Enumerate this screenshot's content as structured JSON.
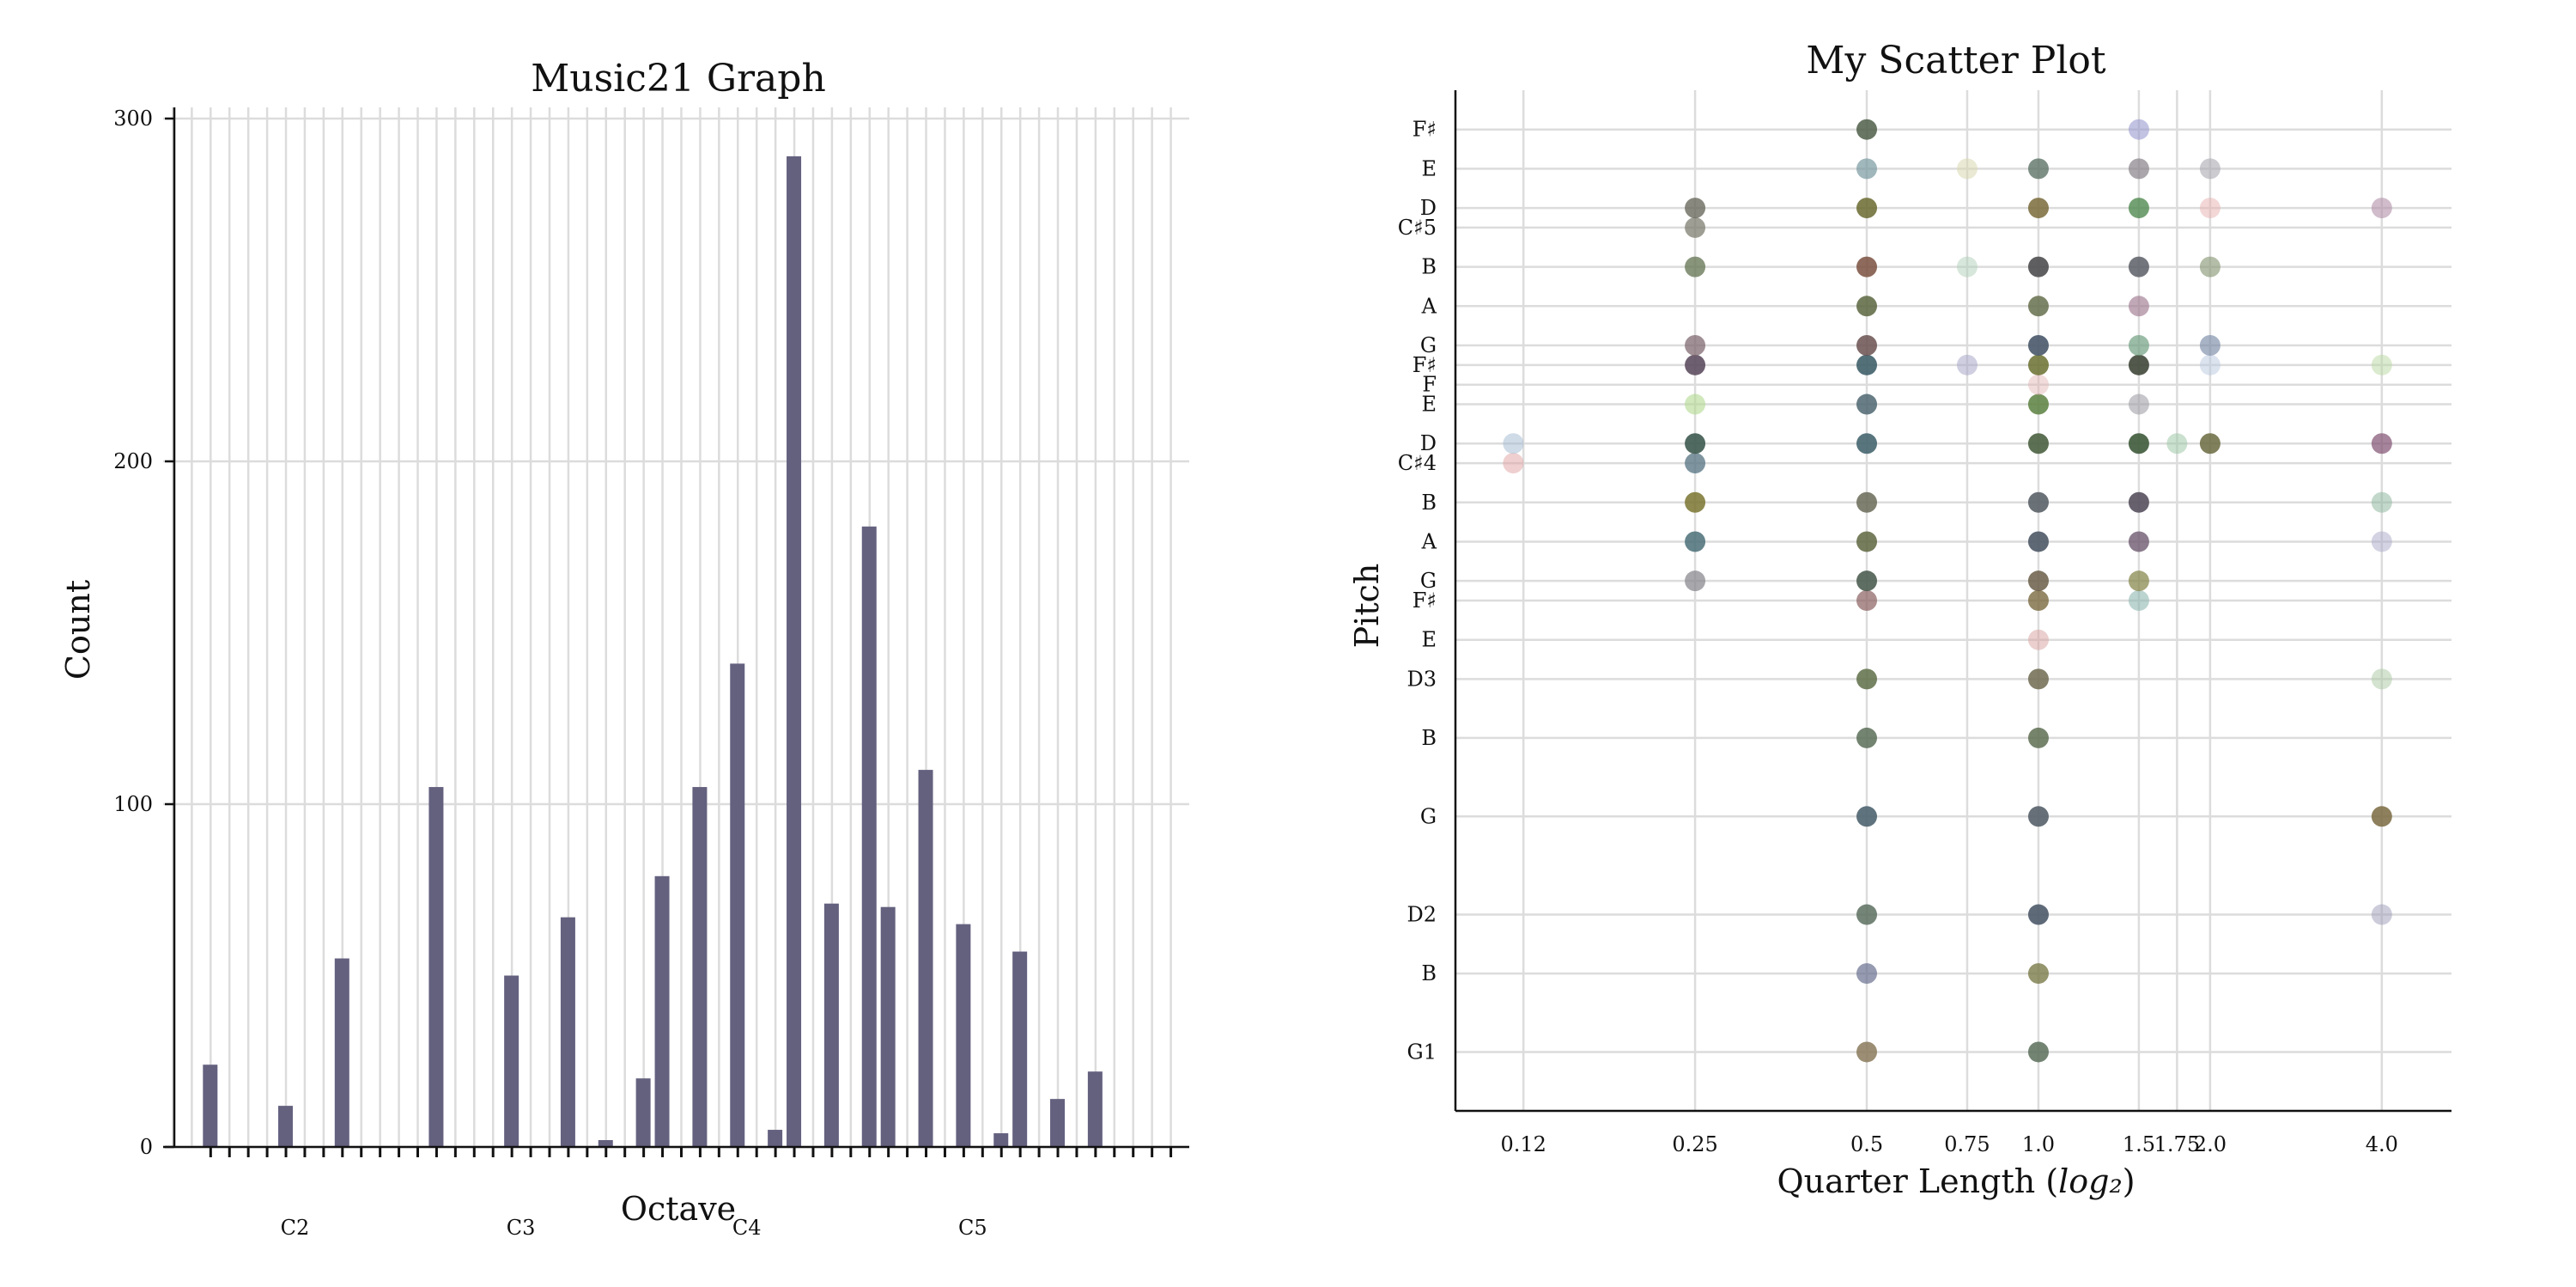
{
  "chart_data": [
    {
      "type": "bar",
      "title": "Music21 Graph",
      "xlabel": "Octave",
      "ylabel": "Count",
      "ylim": [
        0,
        300
      ],
      "yticks": [
        0,
        100,
        200,
        300
      ],
      "grid": true,
      "octave_ticks": [
        {
          "label": "C2",
          "midi": 36
        },
        {
          "label": "C3",
          "midi": 48
        },
        {
          "label": "C4",
          "midi": 60
        },
        {
          "label": "C5",
          "midi": 72
        }
      ],
      "xrange_midi": [
        28.5,
        83
      ],
      "minor_ticks_midi": [
        31,
        32,
        33,
        34,
        35,
        36,
        37,
        38,
        39,
        40,
        41,
        42,
        43,
        44,
        45,
        46,
        47,
        48,
        49,
        50,
        51,
        52,
        53,
        54,
        55,
        56,
        57,
        58,
        59,
        60,
        61,
        62,
        63,
        64,
        65,
        66,
        67,
        68,
        69,
        70,
        71,
        72,
        73,
        74,
        75,
        76,
        77,
        78,
        79,
        80,
        81,
        82
      ],
      "values": [
        {
          "midi": 31,
          "count": 24
        },
        {
          "midi": 35,
          "count": 12
        },
        {
          "midi": 38,
          "count": 55
        },
        {
          "midi": 43,
          "count": 105
        },
        {
          "midi": 47,
          "count": 50
        },
        {
          "midi": 50,
          "count": 67
        },
        {
          "midi": 52,
          "count": 2
        },
        {
          "midi": 54,
          "count": 20
        },
        {
          "midi": 55,
          "count": 79
        },
        {
          "midi": 57,
          "count": 105
        },
        {
          "midi": 59,
          "count": 141
        },
        {
          "midi": 61,
          "count": 5
        },
        {
          "midi": 62,
          "count": 289
        },
        {
          "midi": 64,
          "count": 71
        },
        {
          "midi": 66,
          "count": 181
        },
        {
          "midi": 67,
          "count": 70
        },
        {
          "midi": 69,
          "count": 110
        },
        {
          "midi": 71,
          "count": 65
        },
        {
          "midi": 73,
          "count": 4
        },
        {
          "midi": 74,
          "count": 57
        },
        {
          "midi": 76,
          "count": 14
        },
        {
          "midi": 78,
          "count": 22
        }
      ],
      "bar_color": "#64617f"
    },
    {
      "type": "scatter",
      "title": "My Scatter Plot",
      "xlabel": "Quarter Length (log₂)",
      "ylabel": "Pitch",
      "xscale": "log2",
      "xticks": [
        {
          "label": "0.12",
          "value": 0.125
        },
        {
          "label": "0.25",
          "value": 0.25
        },
        {
          "label": "0.5",
          "value": 0.5
        },
        {
          "label": "0.75",
          "value": 0.75
        },
        {
          "label": "1.0",
          "value": 1.0
        },
        {
          "label": "1.5",
          "value": 1.5
        },
        {
          "label": "1.75",
          "value": 1.75
        },
        {
          "label": "2.0",
          "value": 2.0
        },
        {
          "label": "4.0",
          "value": 4.0
        }
      ],
      "xrange": [
        0.095,
        5.3
      ],
      "yrange_midi": [
        28,
        80
      ],
      "yticks": [
        {
          "label": "G1",
          "midi": 31
        },
        {
          "label": "B",
          "midi": 35
        },
        {
          "label": "D2",
          "midi": 38
        },
        {
          "label": "G",
          "midi": 43
        },
        {
          "label": "B",
          "midi": 47
        },
        {
          "label": "D3",
          "midi": 50
        },
        {
          "label": "E",
          "midi": 52
        },
        {
          "label": "F♯",
          "midi": 54
        },
        {
          "label": "G",
          "midi": 55
        },
        {
          "label": "A",
          "midi": 57
        },
        {
          "label": "B",
          "midi": 59
        },
        {
          "label": "C♯4",
          "midi": 61
        },
        {
          "label": "D",
          "midi": 62
        },
        {
          "label": "E",
          "midi": 64
        },
        {
          "label": "F",
          "midi": 65
        },
        {
          "label": "F♯",
          "midi": 66
        },
        {
          "label": "G",
          "midi": 67
        },
        {
          "label": "A",
          "midi": 69
        },
        {
          "label": "B",
          "midi": 71
        },
        {
          "label": "C♯5",
          "midi": 73
        },
        {
          "label": "D",
          "midi": 74
        },
        {
          "label": "E",
          "midi": 76
        },
        {
          "label": "F♯",
          "midi": 78
        }
      ],
      "points": [
        {
          "ql": 0.5,
          "midi": 31,
          "color": "#8a7a5c",
          "alpha": 0.85
        },
        {
          "ql": 1.0,
          "midi": 31,
          "color": "#5a6e5a",
          "alpha": 0.85
        },
        {
          "ql": 0.5,
          "midi": 35,
          "color": "#6a7090",
          "alpha": 0.7
        },
        {
          "ql": 1.0,
          "midi": 35,
          "color": "#7a7a4a",
          "alpha": 0.8
        },
        {
          "ql": 0.5,
          "midi": 38,
          "color": "#5c7060",
          "alpha": 0.85
        },
        {
          "ql": 1.0,
          "midi": 38,
          "color": "#4e5a6a",
          "alpha": 0.9
        },
        {
          "ql": 4.0,
          "midi": 38,
          "color": "#9a9ab8",
          "alpha": 0.5
        },
        {
          "ql": 0.5,
          "midi": 43,
          "color": "#4e6470",
          "alpha": 0.9
        },
        {
          "ql": 1.0,
          "midi": 43,
          "color": "#56606a",
          "alpha": 0.9
        },
        {
          "ql": 4.0,
          "midi": 43,
          "color": "#7a6a40",
          "alpha": 0.85
        },
        {
          "ql": 0.5,
          "midi": 47,
          "color": "#5a6e58",
          "alpha": 0.85
        },
        {
          "ql": 1.0,
          "midi": 47,
          "color": "#5e6e52",
          "alpha": 0.85
        },
        {
          "ql": 0.5,
          "midi": 50,
          "color": "#5e6e48",
          "alpha": 0.85
        },
        {
          "ql": 1.0,
          "midi": 50,
          "color": "#6e6a50",
          "alpha": 0.85
        },
        {
          "ql": 4.0,
          "midi": 50,
          "color": "#a8c8a0",
          "alpha": 0.5
        },
        {
          "ql": 1.0,
          "midi": 52,
          "color": "#d8a0a0",
          "alpha": 0.5
        },
        {
          "ql": 0.5,
          "midi": 54,
          "color": "#8a6060",
          "alpha": 0.7
        },
        {
          "ql": 1.0,
          "midi": 54,
          "color": "#7a6a40",
          "alpha": 0.8
        },
        {
          "ql": 1.5,
          "midi": 54,
          "color": "#90b8b0",
          "alpha": 0.6
        },
        {
          "ql": 0.25,
          "midi": 55,
          "color": "#8a8a90",
          "alpha": 0.75
        },
        {
          "ql": 0.5,
          "midi": 55,
          "color": "#4e5e52",
          "alpha": 0.9
        },
        {
          "ql": 1.0,
          "midi": 55,
          "color": "#6a5e48",
          "alpha": 0.85
        },
        {
          "ql": 1.5,
          "midi": 55,
          "color": "#8a8a50",
          "alpha": 0.75
        },
        {
          "ql": 0.25,
          "midi": 57,
          "color": "#4a6e78",
          "alpha": 0.85
        },
        {
          "ql": 0.5,
          "midi": 57,
          "color": "#5e6640",
          "alpha": 0.85
        },
        {
          "ql": 1.0,
          "midi": 57,
          "color": "#4e5866",
          "alpha": 0.9
        },
        {
          "ql": 1.5,
          "midi": 57,
          "color": "#6e5a70",
          "alpha": 0.8
        },
        {
          "ql": 4.0,
          "midi": 57,
          "color": "#a8a8c8",
          "alpha": 0.5
        },
        {
          "ql": 0.25,
          "midi": 59,
          "color": "#7a7430",
          "alpha": 0.85
        },
        {
          "ql": 0.5,
          "midi": 59,
          "color": "#6a6a58",
          "alpha": 0.85
        },
        {
          "ql": 1.0,
          "midi": 59,
          "color": "#5a6268",
          "alpha": 0.9
        },
        {
          "ql": 1.5,
          "midi": 59,
          "color": "#56505e",
          "alpha": 0.9
        },
        {
          "ql": 4.0,
          "midi": 59,
          "color": "#90b8a0",
          "alpha": 0.55
        },
        {
          "ql": 0.12,
          "midi": 61,
          "color": "#e0a0a0",
          "alpha": 0.5
        },
        {
          "ql": 0.25,
          "midi": 61,
          "color": "#5e7a88",
          "alpha": 0.8
        },
        {
          "ql": 0.12,
          "midi": 62,
          "color": "#a0b8d0",
          "alpha": 0.5
        },
        {
          "ql": 0.25,
          "midi": 62,
          "color": "#3e5a50",
          "alpha": 0.9
        },
        {
          "ql": 0.5,
          "midi": 62,
          "color": "#466670",
          "alpha": 0.9
        },
        {
          "ql": 1.0,
          "midi": 62,
          "color": "#4a6040",
          "alpha": 0.9
        },
        {
          "ql": 1.5,
          "midi": 62,
          "color": "#3e5a3a",
          "alpha": 0.9
        },
        {
          "ql": 1.75,
          "midi": 62,
          "color": "#a0c8a8",
          "alpha": 0.55
        },
        {
          "ql": 2.0,
          "midi": 62,
          "color": "#6a6a40",
          "alpha": 0.85
        },
        {
          "ql": 4.0,
          "midi": 62,
          "color": "#805070",
          "alpha": 0.7
        },
        {
          "ql": 0.25,
          "midi": 64,
          "color": "#b0d890",
          "alpha": 0.6
        },
        {
          "ql": 0.5,
          "midi": 64,
          "color": "#4e6670",
          "alpha": 0.85
        },
        {
          "ql": 1.0,
          "midi": 64,
          "color": "#5a8040",
          "alpha": 0.85
        },
        {
          "ql": 1.5,
          "midi": 64,
          "color": "#a0a0a8",
          "alpha": 0.6
        },
        {
          "ql": 1.0,
          "midi": 65,
          "color": "#e0b0b0",
          "alpha": 0.45
        },
        {
          "ql": 0.25,
          "midi": 66,
          "color": "#5e4e60",
          "alpha": 0.9
        },
        {
          "ql": 0.5,
          "midi": 66,
          "color": "#40606a",
          "alpha": 0.9
        },
        {
          "ql": 0.75,
          "midi": 66,
          "color": "#a8a8c8",
          "alpha": 0.55
        },
        {
          "ql": 1.0,
          "midi": 66,
          "color": "#6a7030",
          "alpha": 0.85
        },
        {
          "ql": 1.5,
          "midi": 66,
          "color": "#40483a",
          "alpha": 0.9
        },
        {
          "ql": 2.0,
          "midi": 66,
          "color": "#b8c8e0",
          "alpha": 0.5
        },
        {
          "ql": 4.0,
          "midi": 66,
          "color": "#b8d8a0",
          "alpha": 0.5
        },
        {
          "ql": 0.25,
          "midi": 67,
          "color": "#806a70",
          "alpha": 0.75
        },
        {
          "ql": 0.5,
          "midi": 67,
          "color": "#6a5050",
          "alpha": 0.85
        },
        {
          "ql": 1.0,
          "midi": 67,
          "color": "#48586a",
          "alpha": 0.9
        },
        {
          "ql": 1.5,
          "midi": 67,
          "color": "#70a080",
          "alpha": 0.7
        },
        {
          "ql": 2.0,
          "midi": 67,
          "color": "#7a8aa8",
          "alpha": 0.65
        },
        {
          "ql": 0.5,
          "midi": 69,
          "color": "#5a6640",
          "alpha": 0.85
        },
        {
          "ql": 1.0,
          "midi": 69,
          "color": "#66704e",
          "alpha": 0.85
        },
        {
          "ql": 1.5,
          "midi": 69,
          "color": "#a07a90",
          "alpha": 0.65
        },
        {
          "ql": 0.25,
          "midi": 71,
          "color": "#6a7a5a",
          "alpha": 0.8
        },
        {
          "ql": 0.5,
          "midi": 71,
          "color": "#7a5040",
          "alpha": 0.85
        },
        {
          "ql": 0.75,
          "midi": 71,
          "color": "#b0d0b8",
          "alpha": 0.5
        },
        {
          "ql": 1.0,
          "midi": 71,
          "color": "#4e4e50",
          "alpha": 0.9
        },
        {
          "ql": 1.5,
          "midi": 71,
          "color": "#5a5e66",
          "alpha": 0.85
        },
        {
          "ql": 2.0,
          "midi": 71,
          "color": "#8a9a78",
          "alpha": 0.65
        },
        {
          "ql": 0.25,
          "midi": 73,
          "color": "#7e7e70",
          "alpha": 0.75
        },
        {
          "ql": 0.25,
          "midi": 74,
          "color": "#6a6a5e",
          "alpha": 0.8
        },
        {
          "ql": 0.5,
          "midi": 74,
          "color": "#6a6a30",
          "alpha": 0.85
        },
        {
          "ql": 1.0,
          "midi": 74,
          "color": "#7a6a3a",
          "alpha": 0.85
        },
        {
          "ql": 1.5,
          "midi": 74,
          "color": "#508a50",
          "alpha": 0.8
        },
        {
          "ql": 2.0,
          "midi": 74,
          "color": "#e8b0b0",
          "alpha": 0.5
        },
        {
          "ql": 4.0,
          "midi": 74,
          "color": "#b090a8",
          "alpha": 0.6
        },
        {
          "ql": 0.5,
          "midi": 76,
          "color": "#7898a0",
          "alpha": 0.7
        },
        {
          "ql": 0.75,
          "midi": 76,
          "color": "#d8d8b0",
          "alpha": 0.55
        },
        {
          "ql": 1.0,
          "midi": 76,
          "color": "#5e7468",
          "alpha": 0.8
        },
        {
          "ql": 1.5,
          "midi": 76,
          "color": "#868088",
          "alpha": 0.7
        },
        {
          "ql": 2.0,
          "midi": 76,
          "color": "#a8a8b0",
          "alpha": 0.6
        },
        {
          "ql": 0.5,
          "midi": 78,
          "color": "#4e5e48",
          "alpha": 0.85
        },
        {
          "ql": 1.5,
          "midi": 78,
          "color": "#9a9ad0",
          "alpha": 0.6
        }
      ]
    }
  ]
}
